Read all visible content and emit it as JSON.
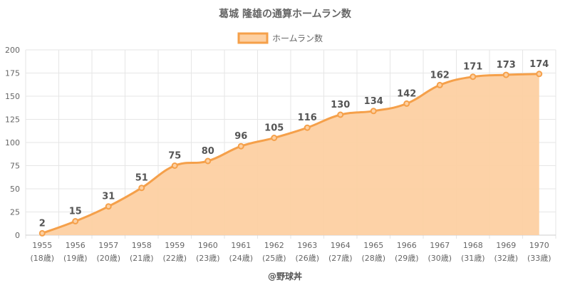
{
  "chart_data": {
    "type": "area",
    "title": "葛城 隆雄の通算ホームラン数",
    "legend": [
      "ホームラン数"
    ],
    "legend_position": "top-center",
    "categories": [
      "1955",
      "1956",
      "1957",
      "1958",
      "1959",
      "1960",
      "1961",
      "1962",
      "1963",
      "1964",
      "1965",
      "1966",
      "1967",
      "1968",
      "1969",
      "1970"
    ],
    "ages": [
      "(18歳)",
      "(19歳)",
      "(20歳)",
      "(21歳)",
      "(22歳)",
      "(23歳)",
      "(24歳)",
      "(25歳)",
      "(26歳)",
      "(27歳)",
      "(28歳)",
      "(29歳)",
      "(30歳)",
      "(31歳)",
      "(32歳)",
      "(33歳)"
    ],
    "series": [
      {
        "name": "ホームラン数",
        "values": [
          2,
          15,
          31,
          51,
          75,
          80,
          96,
          105,
          116,
          130,
          134,
          142,
          162,
          171,
          173,
          174
        ]
      }
    ],
    "ylim": [
      0,
      200
    ],
    "yticks": [
      0,
      25,
      50,
      75,
      100,
      125,
      150,
      175,
      200
    ],
    "grid": true,
    "colors": {
      "line": "#f5a04a",
      "fill": "#fdd0a2",
      "point": "#f5a04a"
    },
    "credit": "@野球丼"
  }
}
